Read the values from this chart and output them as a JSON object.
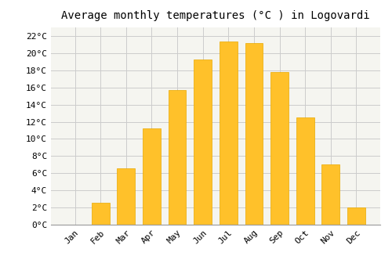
{
  "title": "Average monthly temperatures (°C ) in Logovardi",
  "months": [
    "Jan",
    "Feb",
    "Mar",
    "Apr",
    "May",
    "Jun",
    "Jul",
    "Aug",
    "Sep",
    "Oct",
    "Nov",
    "Dec"
  ],
  "values": [
    0,
    2.6,
    6.6,
    11.2,
    15.7,
    19.3,
    21.4,
    21.2,
    17.8,
    12.5,
    7.0,
    2.0
  ],
  "bar_color": "#FFC12A",
  "bar_edge_color": "#E8A800",
  "plot_bg_color": "#F5F5F0",
  "fig_bg_color": "#FFFFFF",
  "grid_color": "#CCCCCC",
  "ylim": [
    0,
    23
  ],
  "yticks": [
    0,
    2,
    4,
    6,
    8,
    10,
    12,
    14,
    16,
    18,
    20,
    22
  ],
  "ytick_labels": [
    "0°C",
    "2°C",
    "4°C",
    "6°C",
    "8°C",
    "10°C",
    "12°C",
    "14°C",
    "16°C",
    "18°C",
    "20°C",
    "22°C"
  ],
  "title_fontsize": 10,
  "tick_fontsize": 8,
  "font_family": "monospace",
  "bar_width": 0.7
}
